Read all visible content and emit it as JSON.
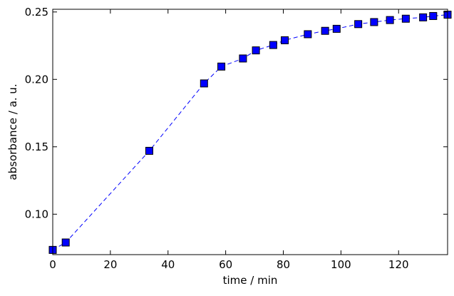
{
  "chart_data": {
    "type": "line",
    "title": "",
    "xlabel": "time / min",
    "ylabel": "absorbance / a. u.",
    "xlim": [
      0,
      137
    ],
    "ylim": [
      0.07,
      0.252
    ],
    "xticks": [
      0,
      20,
      40,
      60,
      80,
      100,
      120
    ],
    "yticks": [
      0.1,
      0.15,
      0.2,
      0.25
    ],
    "xtick_labels": [
      "0",
      "20",
      "40",
      "60",
      "80",
      "100",
      "120"
    ],
    "ytick_labels": [
      "0.10",
      "0.15",
      "0.20",
      "0.25"
    ],
    "grid": false,
    "legend": null,
    "series": [
      {
        "color": "#0000ff",
        "marker": "square",
        "linestyle": "dashed",
        "x": [
          0,
          4.5,
          33.5,
          52.5,
          58.5,
          66,
          70.5,
          76.5,
          80.5,
          88.5,
          94.5,
          98.5,
          106,
          111.5,
          117,
          122.5,
          128.5,
          132,
          137
        ],
        "y": [
          0.0735,
          0.079,
          0.147,
          0.197,
          0.2095,
          0.2155,
          0.2215,
          0.2255,
          0.229,
          0.2335,
          0.236,
          0.2375,
          0.241,
          0.2425,
          0.244,
          0.245,
          0.246,
          0.247,
          0.248
        ]
      }
    ]
  }
}
